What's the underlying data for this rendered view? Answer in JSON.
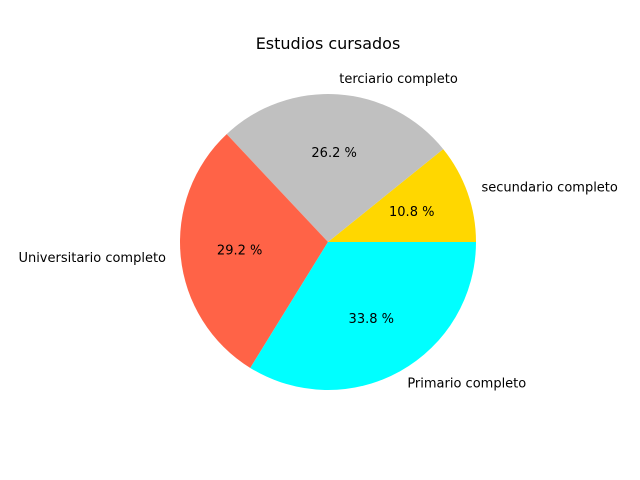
{
  "chart_data": {
    "type": "pie",
    "title": "Estudios cursados",
    "categories": [
      "secundario completo",
      "terciario completo",
      "Universitario completo",
      "Primario completo"
    ],
    "values": [
      10.8,
      26.2,
      29.2,
      33.8
    ],
    "value_labels": [
      "10.8 %",
      "26.2 %",
      "29.2 %",
      "33.8 %"
    ],
    "colors": [
      "#FFD700",
      "#C0C0C0",
      "#FF6347",
      "#00FFFF"
    ],
    "start_angle_deg": 0,
    "direction": "counterclockwise",
    "legend": "none"
  }
}
